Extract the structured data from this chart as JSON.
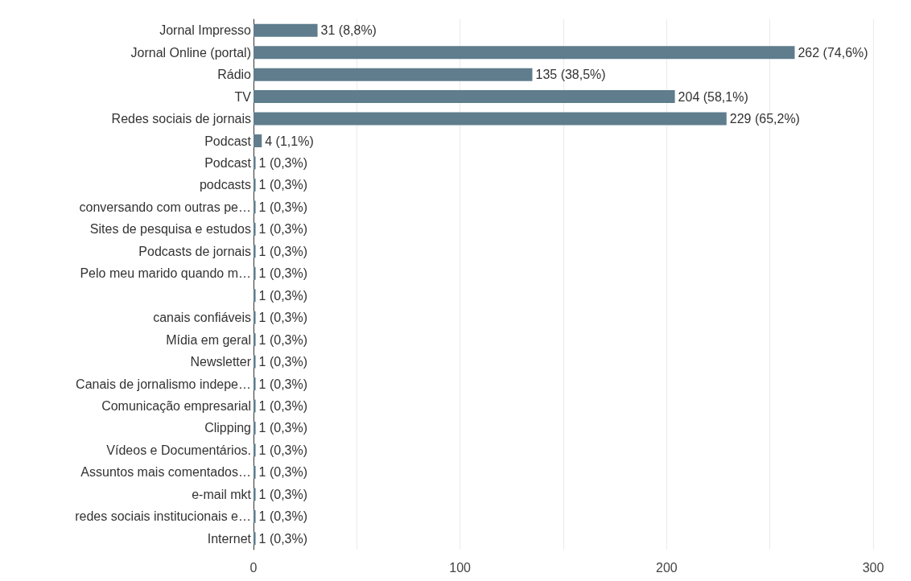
{
  "chart_data": {
    "type": "bar",
    "orientation": "horizontal",
    "categories": [
      "Jornal Impresso",
      "Jornal Online (portal)",
      "Rádio",
      "TV",
      "Redes sociais de jornais",
      "Podcast",
      "Podcast",
      "podcasts",
      "conversando com outras pe…",
      "Sites de pesquisa e estudos",
      "Podcasts de jornais",
      "Pelo meu marido quando m…",
      null,
      "canais confiáveis",
      "Mídia em geral",
      "Newsletter",
      "Canais de jornalismo indepe…",
      "Comunicação empresarial",
      "Clipping",
      "Vídeos e Documentários.",
      "Assuntos mais comentados…",
      "e-mail mkt",
      "redes sociais institucionais e…",
      "Internet"
    ],
    "values": [
      31,
      262,
      135,
      204,
      229,
      4,
      1,
      1,
      1,
      1,
      1,
      1,
      1,
      1,
      1,
      1,
      1,
      1,
      1,
      1,
      1,
      1,
      1,
      1
    ],
    "value_labels": [
      "31 (8,8%)",
      "262 (74,6%)",
      "135 (38,5%)",
      "204 (58,1%)",
      "229 (65,2%)",
      "4 (1,1%)",
      "1 (0,3%)",
      "1 (0,3%)",
      "1 (0,3%)",
      "1 (0,3%)",
      "1 (0,3%)",
      "1 (0,3%)",
      "1 (0,3%)",
      "1 (0,3%)",
      "1 (0,3%)",
      "1 (0,3%)",
      "1 (0,3%)",
      "1 (0,3%)",
      "1 (0,3%)",
      "1 (0,3%)",
      "1 (0,3%)",
      "1 (0,3%)",
      "1 (0,3%)",
      "1 (0,3%)"
    ],
    "color": "#5f7d8c",
    "xlim": [
      0,
      300
    ],
    "xticks": [
      0,
      {
        "value": 50,
        "label": null
      },
      100,
      {
        "value": 150,
        "label": null
      },
      200,
      {
        "value": 250,
        "label": null
      },
      300
    ],
    "grid": "x"
  }
}
